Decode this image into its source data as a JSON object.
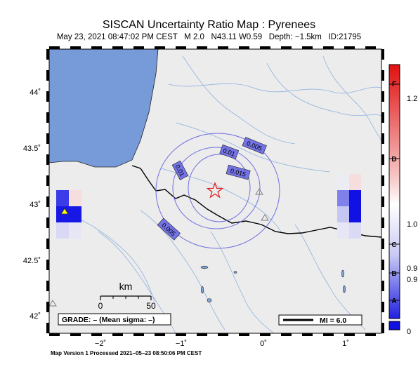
{
  "header": {
    "title": "SISCAN Uncertainty Ratio Map : Pyrenees",
    "subtitle": "May 23, 2021 08:47:02 PM CEST   M 2.0   N43.11 W0.59   Depth: −1.5km   ID:21795"
  },
  "footer": {
    "processed": "Map Version 1 Processed 2021–05–23 08:50:06 PM CEST"
  },
  "axes": {
    "lat_ticks": [
      "44˚",
      "43.5˚",
      "43˚",
      "42.5˚",
      "42˚"
    ],
    "lon_ticks": [
      "−2˚",
      "−1˚",
      "0˚",
      "1˚"
    ]
  },
  "scale_bar": {
    "unit": "km",
    "min_label": "0",
    "max_label": "50"
  },
  "grade_box": {
    "text": "GRADE: – (Mean sigma: –)"
  },
  "mi_legend": {
    "text": "MI = 6.0"
  },
  "contours": [
    {
      "label": "0.005"
    },
    {
      "label": "0.01"
    },
    {
      "label": "0.01"
    },
    {
      "label": "0.015"
    },
    {
      "label": "0.005"
    }
  ],
  "colorbar": {
    "letters": [
      "F",
      "D",
      "C",
      "B",
      "A"
    ],
    "values": [
      "1.2",
      "1.0",
      "0.9",
      "0.9",
      "0"
    ]
  },
  "colors": {
    "ocean": "#779ad8",
    "land": "#ececec",
    "river": "#7fa7d6",
    "contour": "#6f6fe0",
    "label_bg": "#7373e6",
    "epicenter": "#e02020",
    "station_land": "#ffff00"
  },
  "icons": {
    "epicenter": "star-icon",
    "station": "triangle-icon"
  }
}
